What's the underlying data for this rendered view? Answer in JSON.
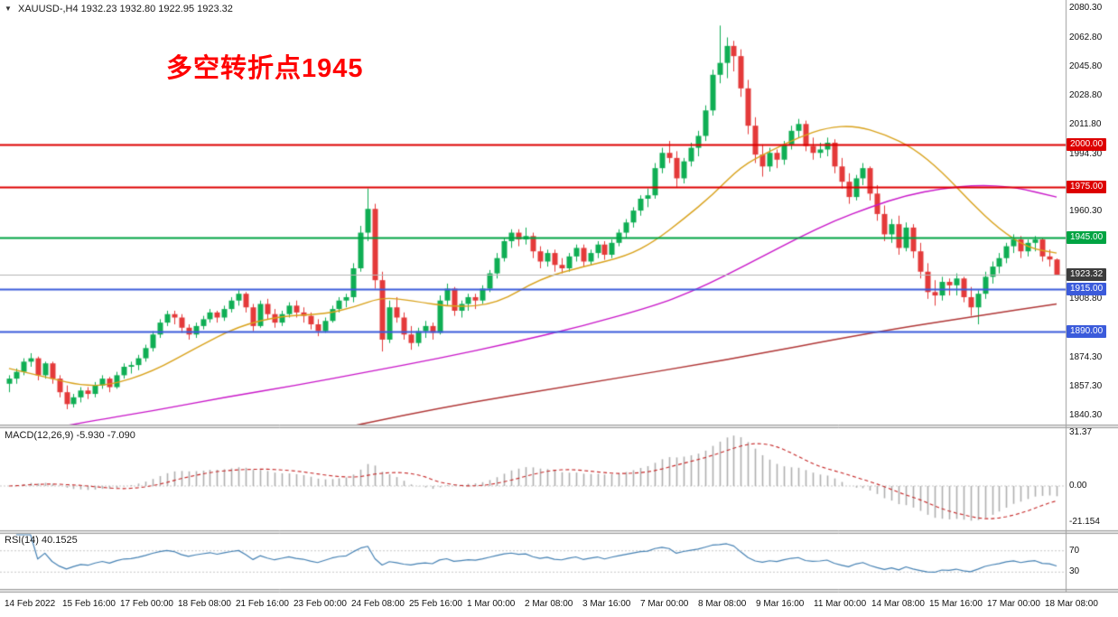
{
  "header": {
    "collapse_icon": "▼",
    "symbol_timeframe": "XAUUSD-,H4",
    "ohlc": "1932.23 1932.80 1922.95 1923.32"
  },
  "annotation": {
    "text": "多空转折点1945",
    "color": "#ff0000"
  },
  "indicators": {
    "macd_label": "MACD(12,26,9) -5.930 -7.090",
    "rsi_label": "RSI(14) 40.1525"
  },
  "chart_data": {
    "type": "candlestick",
    "title": "XAUUSD-,H4",
    "symbol": "XAUUSD",
    "timeframe": "H4",
    "colors": {
      "bull": "#0fae54",
      "bear": "#e43a3a",
      "ma_fast": "#d9a21b",
      "ma_mid": "#c917c9",
      "ma_slow": "#b03636",
      "hline_red": "#dd0000",
      "hline_green": "#00a443",
      "hline_blue": "#3b5bdb",
      "macd_hist": "#b0b0b0",
      "macd_signal": "#c62828",
      "rsi_line": "#4682b4",
      "current_price_line": "#b5b5b5",
      "current_label_bg": "#3c3c3c",
      "annotation": "#ff0000"
    },
    "y_axis": {
      "min": 1836,
      "max": 2084,
      "ticks": [
        {
          "v": 2080.3,
          "label": "2080.30"
        },
        {
          "v": 2062.8,
          "label": "2062.80"
        },
        {
          "v": 2045.8,
          "label": "2045.80"
        },
        {
          "v": 2028.8,
          "label": "2028.80"
        },
        {
          "v": 2011.8,
          "label": "2011.80"
        },
        {
          "v": 1994.3,
          "label": "1994.30"
        },
        {
          "v": 1960.3,
          "label": "1960.30"
        },
        {
          "v": 1908.8,
          "label": "1908.80"
        },
        {
          "v": 1874.3,
          "label": "1874.30"
        },
        {
          "v": 1857.3,
          "label": "1857.30"
        },
        {
          "v": 1840.3,
          "label": "1840.30"
        }
      ]
    },
    "hlines": [
      {
        "price": 2000.0,
        "label": "2000.00",
        "color": "#dd0000"
      },
      {
        "price": 1975.0,
        "label": "1975.00",
        "color": "#dd0000"
      },
      {
        "price": 1945.0,
        "label": "1945.00",
        "color": "#00a443"
      },
      {
        "price": 1915.0,
        "label": "1915.00",
        "color": "#3b5bdb"
      },
      {
        "price": 1890.0,
        "label": "1890.00",
        "color": "#3b5bdb"
      }
    ],
    "current_price": {
      "value": 1923.32,
      "label": "1923.32"
    },
    "moving_averages": [
      {
        "name": "fast-ma",
        "color": "#d9a21b",
        "points": [
          [
            0,
            1868
          ],
          [
            6,
            1862
          ],
          [
            10,
            1858
          ],
          [
            14,
            1858
          ],
          [
            20,
            1866
          ],
          [
            26,
            1880
          ],
          [
            32,
            1893
          ],
          [
            38,
            1899
          ],
          [
            44,
            1900
          ],
          [
            48,
            1904
          ],
          [
            52,
            1910
          ],
          [
            56,
            1908
          ],
          [
            62,
            1904
          ],
          [
            68,
            1906
          ],
          [
            74,
            1921
          ],
          [
            80,
            1928
          ],
          [
            86,
            1934
          ],
          [
            90,
            1943
          ],
          [
            94,
            1956
          ],
          [
            98,
            1970
          ],
          [
            102,
            1987
          ],
          [
            106,
            1996
          ],
          [
            110,
            2004
          ],
          [
            114,
            2010
          ],
          [
            118,
            2011
          ],
          [
            122,
            2006
          ],
          [
            126,
            1998
          ],
          [
            130,
            1984
          ],
          [
            134,
            1966
          ],
          [
            138,
            1950
          ],
          [
            142,
            1939
          ],
          [
            146,
            1936
          ]
        ]
      },
      {
        "name": "mid-ma",
        "color": "#c917c9",
        "points": [
          [
            0,
            1828
          ],
          [
            10,
            1836
          ],
          [
            20,
            1843
          ],
          [
            30,
            1851
          ],
          [
            40,
            1858
          ],
          [
            50,
            1866
          ],
          [
            60,
            1874
          ],
          [
            70,
            1883
          ],
          [
            80,
            1893
          ],
          [
            90,
            1905
          ],
          [
            95,
            1913
          ],
          [
            100,
            1923
          ],
          [
            105,
            1934
          ],
          [
            110,
            1945
          ],
          [
            115,
            1955
          ],
          [
            120,
            1963
          ],
          [
            125,
            1970
          ],
          [
            130,
            1974
          ],
          [
            135,
            1976
          ],
          [
            140,
            1975
          ],
          [
            146,
            1969
          ]
        ]
      },
      {
        "name": "slow-ma",
        "color": "#b03636",
        "points": [
          [
            0,
            1800
          ],
          [
            20,
            1813
          ],
          [
            40,
            1827
          ],
          [
            60,
            1845
          ],
          [
            80,
            1859
          ],
          [
            100,
            1873
          ],
          [
            120,
            1889
          ],
          [
            135,
            1899
          ],
          [
            146,
            1906
          ]
        ]
      }
    ],
    "candles_ohlc": [
      [
        1859,
        1864,
        1854,
        1862
      ],
      [
        1862,
        1868,
        1859,
        1866
      ],
      [
        1866,
        1874,
        1864,
        1872
      ],
      [
        1872,
        1877,
        1869,
        1874
      ],
      [
        1874,
        1875,
        1861,
        1864
      ],
      [
        1864,
        1872,
        1862,
        1871
      ],
      [
        1871,
        1872,
        1859,
        1862
      ],
      [
        1862,
        1864,
        1851,
        1854
      ],
      [
        1854,
        1858,
        1844,
        1847
      ],
      [
        1847,
        1853,
        1845,
        1851
      ],
      [
        1851,
        1857,
        1848,
        1855
      ],
      [
        1855,
        1857,
        1850,
        1853
      ],
      [
        1853,
        1860,
        1851,
        1858
      ],
      [
        1858,
        1864,
        1856,
        1862
      ],
      [
        1862,
        1863,
        1854,
        1857
      ],
      [
        1857,
        1866,
        1856,
        1864
      ],
      [
        1864,
        1871,
        1862,
        1869
      ],
      [
        1869,
        1872,
        1865,
        1870
      ],
      [
        1870,
        1876,
        1867,
        1874
      ],
      [
        1874,
        1882,
        1872,
        1880
      ],
      [
        1880,
        1890,
        1878,
        1888
      ],
      [
        1888,
        1897,
        1886,
        1895
      ],
      [
        1895,
        1902,
        1893,
        1900
      ],
      [
        1900,
        1902,
        1894,
        1898
      ],
      [
        1898,
        1900,
        1889,
        1892
      ],
      [
        1892,
        1894,
        1885,
        1888
      ],
      [
        1888,
        1895,
        1886,
        1893
      ],
      [
        1893,
        1899,
        1891,
        1897
      ],
      [
        1897,
        1903,
        1895,
        1901
      ],
      [
        1901,
        1902,
        1895,
        1898
      ],
      [
        1898,
        1905,
        1896,
        1903
      ],
      [
        1903,
        1910,
        1901,
        1908
      ],
      [
        1908,
        1914,
        1905,
        1912
      ],
      [
        1912,
        1913,
        1901,
        1904
      ],
      [
        1904,
        1906,
        1890,
        1893
      ],
      [
        1893,
        1908,
        1892,
        1906
      ],
      [
        1906,
        1909,
        1897,
        1900
      ],
      [
        1900,
        1903,
        1892,
        1895
      ],
      [
        1895,
        1902,
        1893,
        1900
      ],
      [
        1900,
        1907,
        1898,
        1905
      ],
      [
        1905,
        1908,
        1898,
        1901
      ],
      [
        1901,
        1904,
        1895,
        1899
      ],
      [
        1899,
        1901,
        1891,
        1894
      ],
      [
        1894,
        1897,
        1887,
        1890
      ],
      [
        1890,
        1898,
        1889,
        1896
      ],
      [
        1896,
        1905,
        1895,
        1903
      ],
      [
        1903,
        1910,
        1901,
        1908
      ],
      [
        1908,
        1912,
        1904,
        1910
      ],
      [
        1910,
        1930,
        1907,
        1927
      ],
      [
        1927,
        1952,
        1925,
        1948
      ],
      [
        1948,
        1974,
        1943,
        1962
      ],
      [
        1962,
        1965,
        1915,
        1920
      ],
      [
        1920,
        1925,
        1878,
        1885
      ],
      [
        1885,
        1908,
        1883,
        1904
      ],
      [
        1904,
        1910,
        1895,
        1898
      ],
      [
        1898,
        1901,
        1885,
        1888
      ],
      [
        1888,
        1893,
        1879,
        1883
      ],
      [
        1883,
        1892,
        1881,
        1890
      ],
      [
        1890,
        1896,
        1886,
        1893
      ],
      [
        1893,
        1895,
        1885,
        1889
      ],
      [
        1889,
        1911,
        1888,
        1908
      ],
      [
        1908,
        1918,
        1905,
        1915
      ],
      [
        1915,
        1916,
        1899,
        1902
      ],
      [
        1902,
        1908,
        1898,
        1906
      ],
      [
        1906,
        1912,
        1902,
        1910
      ],
      [
        1910,
        1912,
        1903,
        1908
      ],
      [
        1908,
        1917,
        1906,
        1915
      ],
      [
        1915,
        1926,
        1913,
        1924
      ],
      [
        1924,
        1936,
        1921,
        1933
      ],
      [
        1933,
        1945,
        1931,
        1943
      ],
      [
        1943,
        1950,
        1939,
        1948
      ],
      [
        1948,
        1950,
        1940,
        1944
      ],
      [
        1944,
        1951,
        1941,
        1946
      ],
      [
        1946,
        1948,
        1933,
        1937
      ],
      [
        1937,
        1940,
        1927,
        1931
      ],
      [
        1931,
        1938,
        1928,
        1936
      ],
      [
        1936,
        1938,
        1925,
        1929
      ],
      [
        1929,
        1933,
        1924,
        1927
      ],
      [
        1927,
        1936,
        1925,
        1934
      ],
      [
        1934,
        1941,
        1931,
        1939
      ],
      [
        1939,
        1941,
        1928,
        1931
      ],
      [
        1931,
        1938,
        1929,
        1936
      ],
      [
        1936,
        1943,
        1933,
        1941
      ],
      [
        1941,
        1943,
        1932,
        1935
      ],
      [
        1935,
        1944,
        1933,
        1942
      ],
      [
        1942,
        1950,
        1940,
        1948
      ],
      [
        1948,
        1956,
        1945,
        1954
      ],
      [
        1954,
        1963,
        1951,
        1961
      ],
      [
        1961,
        1970,
        1958,
        1968
      ],
      [
        1968,
        1974,
        1963,
        1970
      ],
      [
        1970,
        1989,
        1968,
        1986
      ],
      [
        1986,
        1998,
        1983,
        1995
      ],
      [
        1995,
        2002,
        1989,
        1992
      ],
      [
        1992,
        1996,
        1975,
        1980
      ],
      [
        1980,
        1992,
        1977,
        1990
      ],
      [
        1990,
        2001,
        1987,
        1998
      ],
      [
        1998,
        2008,
        1993,
        2005
      ],
      [
        2005,
        2023,
        2002,
        2020
      ],
      [
        2020,
        2044,
        2017,
        2041
      ],
      [
        2041,
        2070,
        2036,
        2048
      ],
      [
        2048,
        2063,
        2039,
        2058
      ],
      [
        2058,
        2061,
        2043,
        2052
      ],
      [
        2052,
        2056,
        2028,
        2033
      ],
      [
        2033,
        2038,
        2006,
        2011
      ],
      [
        2011,
        2016,
        1989,
        1994
      ],
      [
        1994,
        2000,
        1981,
        1987
      ],
      [
        1987,
        1998,
        1984,
        1995
      ],
      [
        1995,
        1997,
        1986,
        1991
      ],
      [
        1991,
        2002,
        1988,
        2000
      ],
      [
        2000,
        2011,
        1997,
        2008
      ],
      [
        2008,
        2015,
        2004,
        2012
      ],
      [
        2012,
        2014,
        1996,
        1999
      ],
      [
        1999,
        2004,
        1991,
        1995
      ],
      [
        1995,
        2001,
        1992,
        1997
      ],
      [
        1997,
        2004,
        1993,
        2001
      ],
      [
        2001,
        2003,
        1983,
        1987
      ],
      [
        1987,
        1992,
        1974,
        1978
      ],
      [
        1978,
        1983,
        1965,
        1969
      ],
      [
        1969,
        1982,
        1967,
        1980
      ],
      [
        1980,
        1989,
        1976,
        1986
      ],
      [
        1986,
        1987,
        1967,
        1971
      ],
      [
        1971,
        1976,
        1955,
        1959
      ],
      [
        1959,
        1964,
        1943,
        1947
      ],
      [
        1947,
        1956,
        1942,
        1953
      ],
      [
        1953,
        1958,
        1935,
        1939
      ],
      [
        1939,
        1954,
        1937,
        1951
      ],
      [
        1951,
        1953,
        1933,
        1937
      ],
      [
        1937,
        1942,
        1921,
        1925
      ],
      [
        1925,
        1930,
        1909,
        1913
      ],
      [
        1913,
        1920,
        1905,
        1911
      ],
      [
        1911,
        1922,
        1908,
        1919
      ],
      [
        1919,
        1921,
        1911,
        1917
      ],
      [
        1917,
        1924,
        1911,
        1921
      ],
      [
        1921,
        1922,
        1907,
        1910
      ],
      [
        1910,
        1916,
        1899,
        1904
      ],
      [
        1904,
        1914,
        1894,
        1912
      ],
      [
        1912,
        1925,
        1909,
        1922
      ],
      [
        1922,
        1931,
        1918,
        1928
      ],
      [
        1928,
        1936,
        1924,
        1933
      ],
      [
        1933,
        1942,
        1930,
        1940
      ],
      [
        1940,
        1947,
        1936,
        1944
      ],
      [
        1944,
        1946,
        1933,
        1937
      ],
      [
        1937,
        1944,
        1934,
        1942
      ],
      [
        1942,
        1946,
        1937,
        1944
      ],
      [
        1944,
        1945,
        1931,
        1934
      ],
      [
        1934,
        1938,
        1928,
        1932.2
      ],
      [
        1932.2,
        1932.8,
        1922.9,
        1923.3
      ]
    ],
    "time_labels": [
      "14 Feb 2022",
      "15 Feb 16:00",
      "17 Feb 00:00",
      "18 Feb 08:00",
      "21 Feb 16:00",
      "23 Feb 00:00",
      "24 Feb 08:00",
      "25 Feb 16:00",
      "1 Mar 00:00",
      "2 Mar 08:00",
      "3 Mar 16:00",
      "7 Mar 00:00",
      "8 Mar 08:00",
      "9 Mar 16:00",
      "11 Mar 00:00",
      "14 Mar 08:00",
      "15 Mar 16:00",
      "17 Mar 00:00",
      "18 Mar 08:00"
    ],
    "macd": {
      "fast": 12,
      "slow": 26,
      "signal": 9,
      "value": -5.93,
      "signal_value": -7.09,
      "range": [
        -25,
        34
      ],
      "axis_ticks": [
        {
          "v": 31.37,
          "label": "31.37"
        },
        {
          "v": 0,
          "label": "0.00"
        },
        {
          "v": -21.154,
          "label": "-21.154"
        }
      ]
    },
    "rsi": {
      "period": 14,
      "value": 40.1525,
      "range": [
        0,
        100
      ],
      "levels": [
        {
          "v": 70,
          "label": "70"
        },
        {
          "v": 30,
          "label": "30"
        }
      ]
    }
  }
}
